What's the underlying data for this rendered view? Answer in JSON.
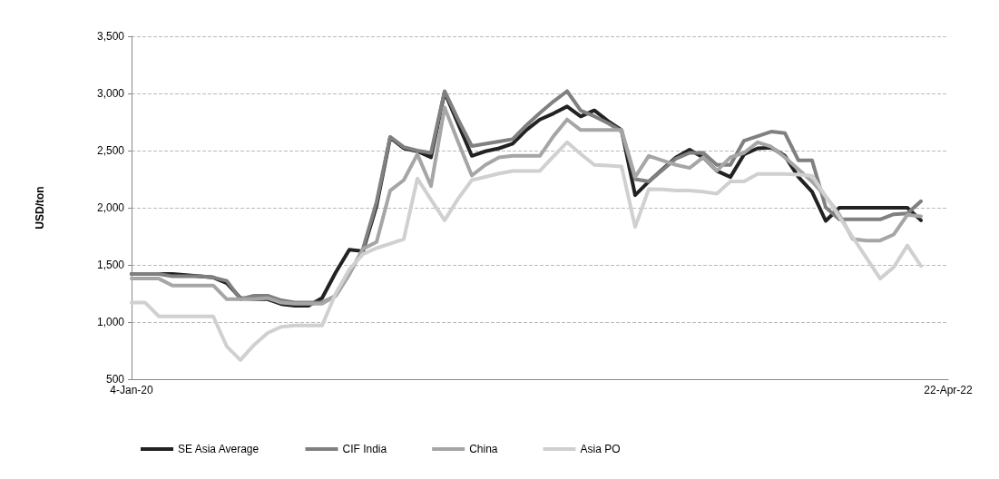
{
  "chart_data": {
    "type": "line",
    "ylabel": "USD/ton",
    "categories": [
      "4-Jan-20",
      null,
      null,
      null,
      null,
      null,
      null,
      null,
      null,
      null,
      null,
      null,
      null,
      null,
      null,
      null,
      null,
      null,
      null,
      null,
      null,
      null,
      null,
      null,
      null,
      null,
      null,
      null,
      null,
      null,
      null,
      null,
      null,
      null,
      null,
      null,
      null,
      null,
      null,
      null,
      null,
      null,
      null,
      null,
      null,
      null,
      null,
      null,
      null,
      null,
      null,
      null,
      null,
      null,
      null,
      null,
      null,
      null,
      null,
      null,
      "22-Apr-22"
    ],
    "series": [
      {
        "name": "SE Asia Average",
        "color": "#222222",
        "values": [
          1420,
          1420,
          1420,
          1420,
          1410,
          1400,
          1390,
          1340,
          1210,
          1200,
          1200,
          1157,
          1143,
          1143,
          1210,
          1435,
          1633,
          1620,
          2017,
          2613,
          2520,
          2494,
          2441,
          3010,
          2732,
          2454,
          2494,
          2520,
          2560,
          2680,
          2772,
          2825,
          2886,
          2799,
          2852,
          2759,
          2680,
          2110,
          2229,
          2335,
          2441,
          2507,
          2441,
          2322,
          2269,
          2467,
          2520,
          2526,
          2454,
          2269,
          2140,
          1885,
          2000,
          2000,
          2000,
          2000,
          2000,
          2000,
          1890,
          null,
          null
        ]
      },
      {
        "name": "CIF India",
        "color": "#808080",
        "values": [
          1420,
          1420,
          1420,
          1400,
          1400,
          1400,
          1390,
          1360,
          1200,
          1230,
          1230,
          1190,
          1170,
          1170,
          1170,
          1230,
          1420,
          1640,
          2050,
          2620,
          2530,
          2500,
          2480,
          3020,
          2770,
          2540,
          2560,
          2580,
          2600,
          2720,
          2830,
          2930,
          3020,
          2850,
          2800,
          2740,
          2670,
          2250,
          2230,
          2330,
          2430,
          2480,
          2480,
          2375,
          2375,
          2587,
          2626,
          2666,
          2653,
          2414,
          2414,
          2004,
          1898,
          1898,
          1898,
          1898,
          1943,
          1951,
          2057,
          null,
          null
        ]
      },
      {
        "name": "China",
        "color": "#a6a6a6",
        "values": [
          1380,
          1380,
          1380,
          1320,
          1320,
          1320,
          1320,
          1200,
          1200,
          1200,
          1210,
          1170,
          1160,
          1160,
          1160,
          1230,
          1420,
          1640,
          1700,
          2150,
          2242,
          2467,
          2190,
          2878,
          2573,
          2282,
          2375,
          2441,
          2454,
          2454,
          2454,
          2626,
          2772,
          2680,
          2680,
          2680,
          2680,
          2269,
          2454,
          2414,
          2375,
          2348,
          2441,
          2322,
          2441,
          2480,
          2573,
          2534,
          2441,
          2335,
          2229,
          2097,
          1938,
          1726,
          1713,
          1713,
          1766,
          1938,
          1925,
          null,
          null
        ]
      },
      {
        "name": "Asia PO",
        "color": "#d0d0d0",
        "values": [
          1170,
          1170,
          1050,
          1050,
          1050,
          1050,
          1050,
          786,
          667,
          800,
          905,
          958,
          971,
          971,
          971,
          1250,
          1460,
          1594,
          1647,
          1686,
          1726,
          2255,
          2070,
          1890,
          2080,
          2242,
          2270,
          2300,
          2322,
          2322,
          2322,
          2450,
          2573,
          2470,
          2375,
          2370,
          2362,
          1832,
          2163,
          2160,
          2150,
          2150,
          2140,
          2123,
          2230,
          2230,
          2295,
          2295,
          2295,
          2290,
          2280,
          2100,
          1920,
          1740,
          1560,
          1380,
          1480,
          1670,
          1490,
          null,
          null
        ]
      }
    ],
    "ylim": [
      500,
      3500
    ],
    "yticks": [
      500,
      {
        "value": 1000,
        "label": "1,000"
      },
      {
        "value": 1500,
        "label": "1,500"
      },
      {
        "value": 2000,
        "label": "2,000"
      },
      {
        "value": 2500,
        "label": "2,500"
      },
      {
        "value": 3000,
        "label": "3,000"
      },
      {
        "value": 3500,
        "label": "3,500"
      }
    ],
    "grid": "y",
    "legend": "bottom",
    "marker": "none",
    "line_style": "solid"
  }
}
